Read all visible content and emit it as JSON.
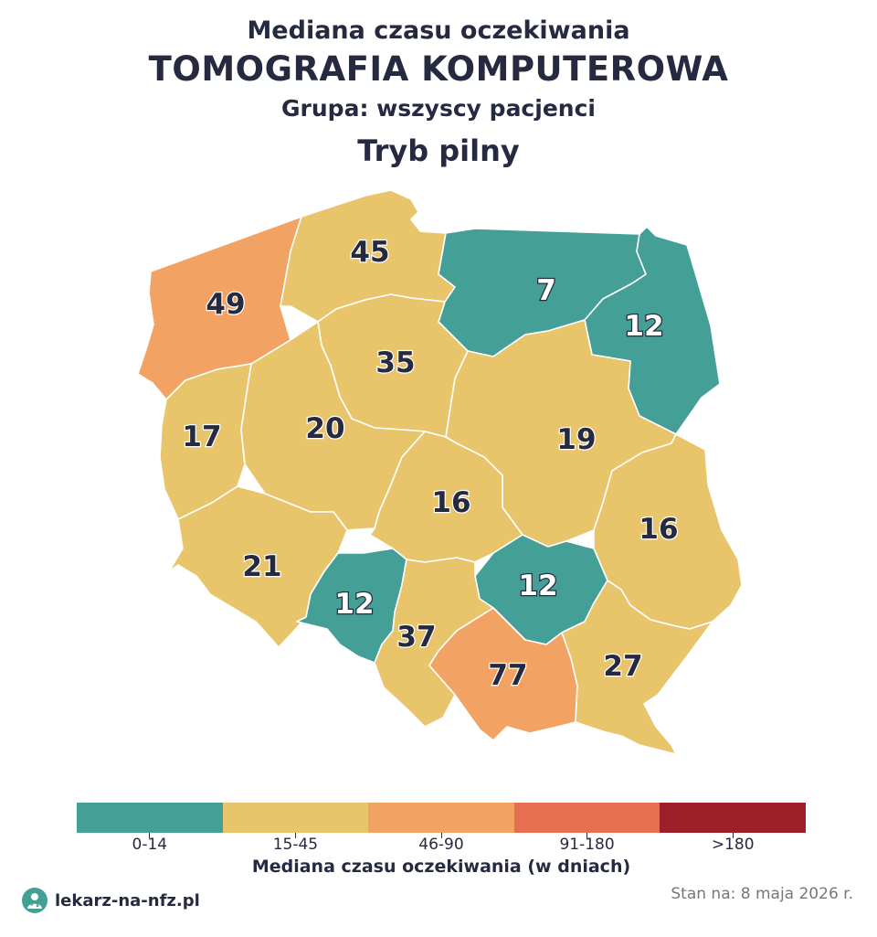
{
  "header": {
    "line1": "Mediana czasu oczekiwania",
    "line2": "TOMOGRAFIA KOMPUTEROWA",
    "line3": "Grupa: wszyscy pacjenci",
    "line4": "Tryb pilny"
  },
  "colors": {
    "teal": "#44a096",
    "yellow": "#e8c46b",
    "orange": "#f2a262",
    "red": "#e66e51",
    "darkred": "#9c2028",
    "border": "#ffffff"
  },
  "regions": [
    {
      "value": "49",
      "color": "#f2a262"
    },
    {
      "value": "45",
      "color": "#e8c46b"
    },
    {
      "value": "7",
      "color": "#44a096"
    },
    {
      "value": "12",
      "color": "#44a096"
    },
    {
      "value": "35",
      "color": "#e8c46b"
    },
    {
      "value": "17",
      "color": "#e8c46b"
    },
    {
      "value": "20",
      "color": "#e8c46b"
    },
    {
      "value": "19",
      "color": "#e8c46b"
    },
    {
      "value": "16",
      "color": "#e8c46b"
    },
    {
      "value": "16",
      "color": "#e8c46b"
    },
    {
      "value": "21",
      "color": "#e8c46b"
    },
    {
      "value": "12",
      "color": "#44a096"
    },
    {
      "value": "12",
      "color": "#44a096"
    },
    {
      "value": "37",
      "color": "#e8c46b"
    },
    {
      "value": "77",
      "color": "#f2a262"
    },
    {
      "value": "27",
      "color": "#e8c46b"
    }
  ],
  "legend": {
    "bins": [
      {
        "label": "0-14",
        "color": "#44a096"
      },
      {
        "label": "15-45",
        "color": "#e8c46b"
      },
      {
        "label": "46-90",
        "color": "#f2a262"
      },
      {
        "label": "91-180",
        "color": "#e66e51"
      },
      {
        "label": ">180",
        "color": "#9c2028"
      }
    ],
    "title": "Mediana czasu oczekiwania (w dniach)"
  },
  "footer": {
    "brand_icon": "doctor-icon",
    "brand": "lekarz-na-nfz.pl",
    "date": "Stan na: 8 maja 2026 r."
  }
}
